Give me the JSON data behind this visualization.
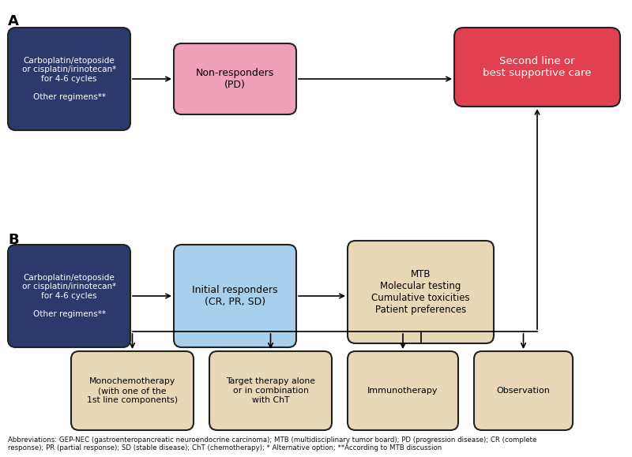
{
  "background_color": "#ffffff",
  "label_A": "A",
  "label_B": "B",
  "footnote": "Abbreviations: GEP-NEC (gastroenteropancreatic neuroendocrine carcinoma); MTB (multidisciplinary tumor board); PD (progression disease); CR (complete\nresponse); PR (partial response); SD (stable disease); ChT (chemotherapy); * Alternative option; **According to MTB discussion",
  "chemo_color": "#2b3a6b",
  "chemo_text_color": "#ffffff",
  "pink_color": "#f0a0b8",
  "red_color": "#e04050",
  "blue_color": "#a8d0ec",
  "tan_color": "#e8d8b8",
  "tan_border": "#b8a888",
  "dark_border": "#222222",
  "gray_border": "#888888",
  "chemo_text": "Carboplatin/etoposide\nor cisplatin/irinotecan*\nfor 4-6 cycles\n\nOther regimens**",
  "non_resp_text": "Non-responders\n(PD)",
  "second_line_text": "Second line or\nbest supportive care",
  "init_resp_text": "Initial responders\n(CR, PR, SD)",
  "mtb_text": "MTB\nMolecular testing\nCumulative toxicities\nPatient preferences",
  "mono_text": "Monochemotherapy\n(with one of the\n1st line components)",
  "target_text": "Target therapy alone\nor in combination\nwith ChT",
  "immuno_text": "Immunotherapy",
  "obs_text": "Observation"
}
